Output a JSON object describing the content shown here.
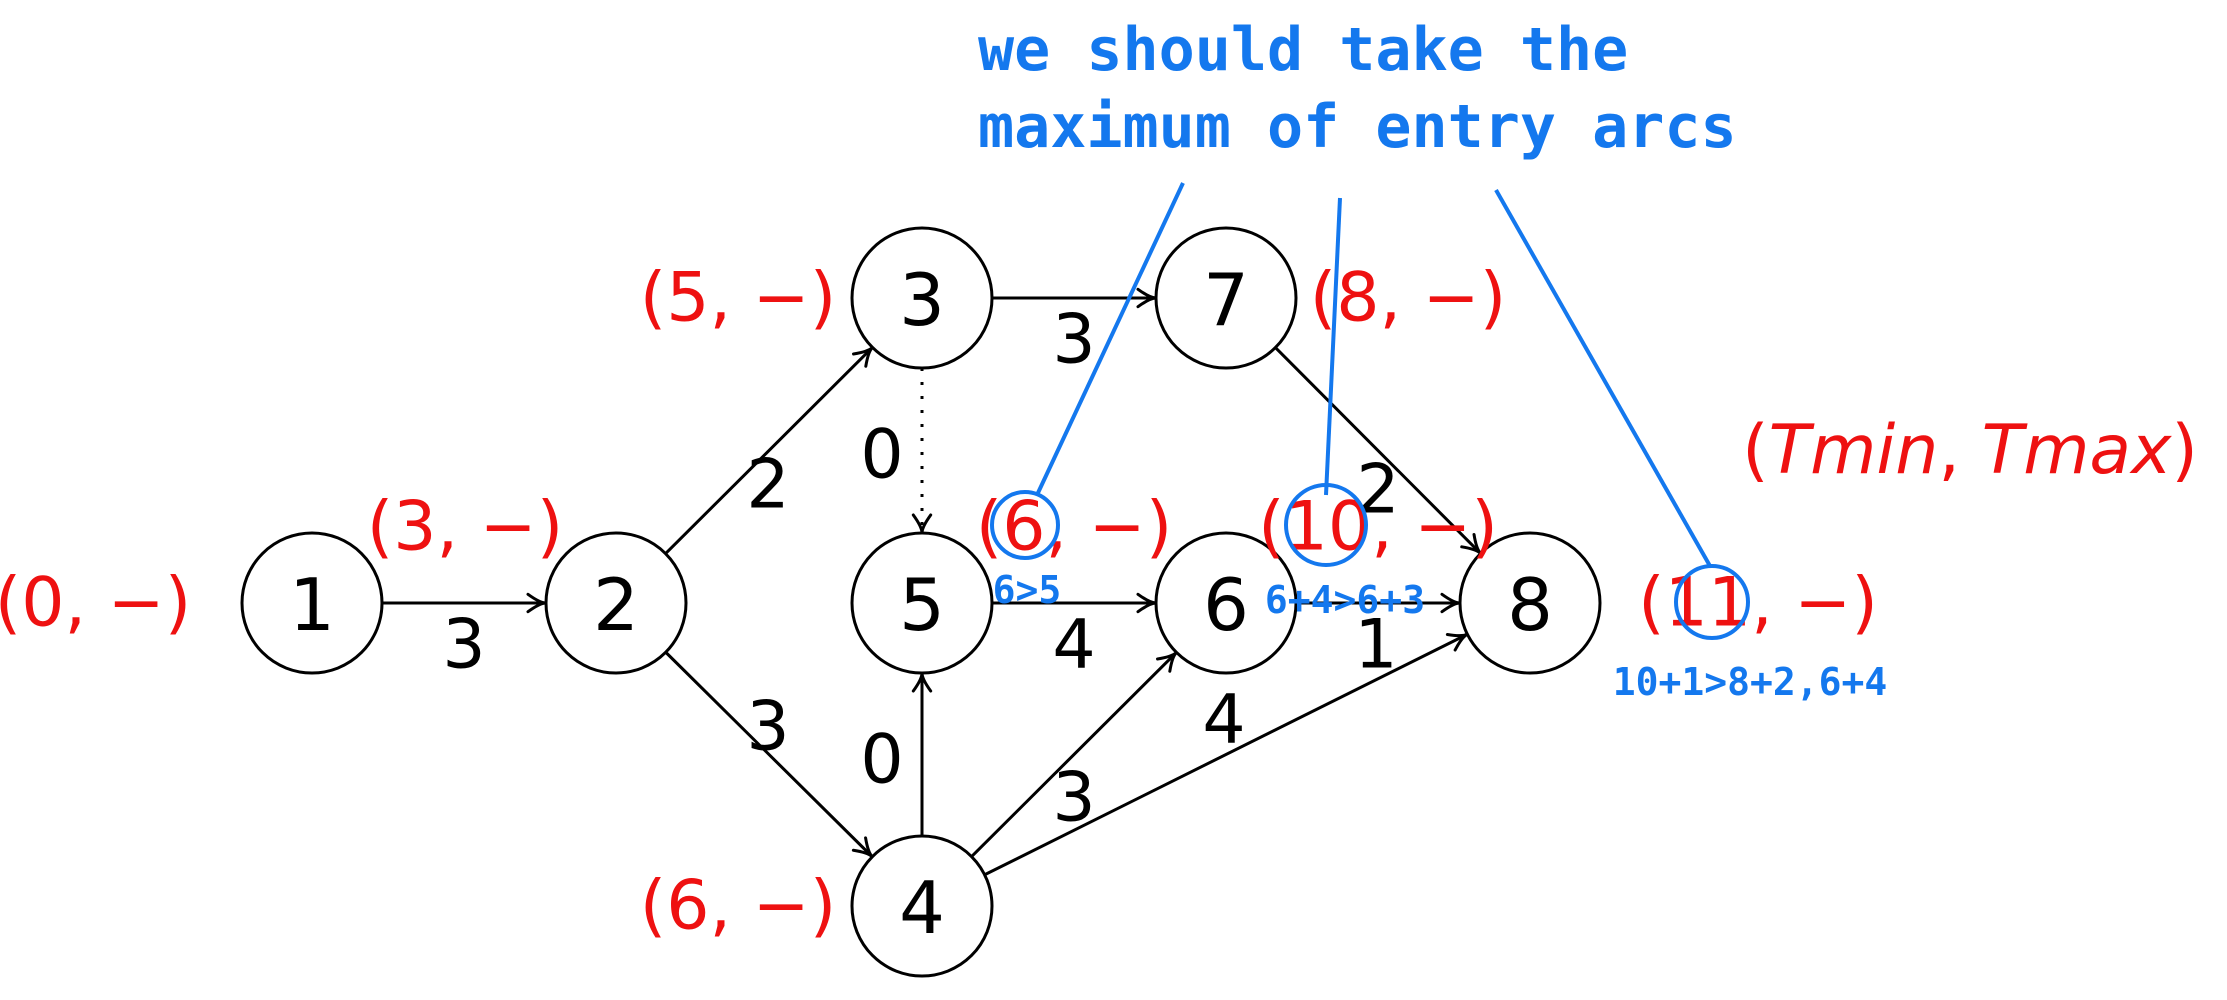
{
  "nodes": [
    {
      "id": "1",
      "label": "1",
      "pair": "(0, −)"
    },
    {
      "id": "2",
      "label": "2",
      "pair": "(3, −)"
    },
    {
      "id": "3",
      "label": "3",
      "pair": "(5, −)"
    },
    {
      "id": "4",
      "label": "4",
      "pair": "(6, −)"
    },
    {
      "id": "5",
      "label": "5",
      "pair": "(6, −)"
    },
    {
      "id": "6",
      "label": "6",
      "pair": "(10, −)"
    },
    {
      "id": "7",
      "label": "7",
      "pair": "(8, −)"
    },
    {
      "id": "8",
      "label": "8",
      "pair": "(11, −)"
    }
  ],
  "edges": [
    {
      "from": "1",
      "to": "2",
      "weight": "3",
      "style": "solid"
    },
    {
      "from": "2",
      "to": "3",
      "weight": "2",
      "style": "solid"
    },
    {
      "from": "2",
      "to": "4",
      "weight": "3",
      "style": "solid"
    },
    {
      "from": "3",
      "to": "7",
      "weight": "3",
      "style": "solid"
    },
    {
      "from": "3",
      "to": "5",
      "weight": "0",
      "style": "dotted"
    },
    {
      "from": "4",
      "to": "5",
      "weight": "0",
      "style": "solid"
    },
    {
      "from": "5",
      "to": "6",
      "weight": "4",
      "style": "solid"
    },
    {
      "from": "4",
      "to": "6",
      "weight": "3",
      "style": "solid"
    },
    {
      "from": "7",
      "to": "8",
      "weight": "2",
      "style": "solid"
    },
    {
      "from": "6",
      "to": "8",
      "weight": "1",
      "style": "solid"
    },
    {
      "from": "4",
      "to": "8",
      "weight": "4",
      "style": "solid"
    }
  ],
  "legend": {
    "open": "(",
    "tmin": "Tmin",
    "sep": ", ",
    "tmax": "Tmax",
    "close": ")"
  },
  "annotation": {
    "line1": "we should take the",
    "line2": "maximum of entry arcs",
    "note_node5": "6>5",
    "note_node6": "6+4>6+3",
    "note_node8": "10+1>8+2,6+4"
  },
  "colors": {
    "pair_text": "#ee1111",
    "annotation": "#1478ee",
    "node_stroke": "#000000"
  }
}
